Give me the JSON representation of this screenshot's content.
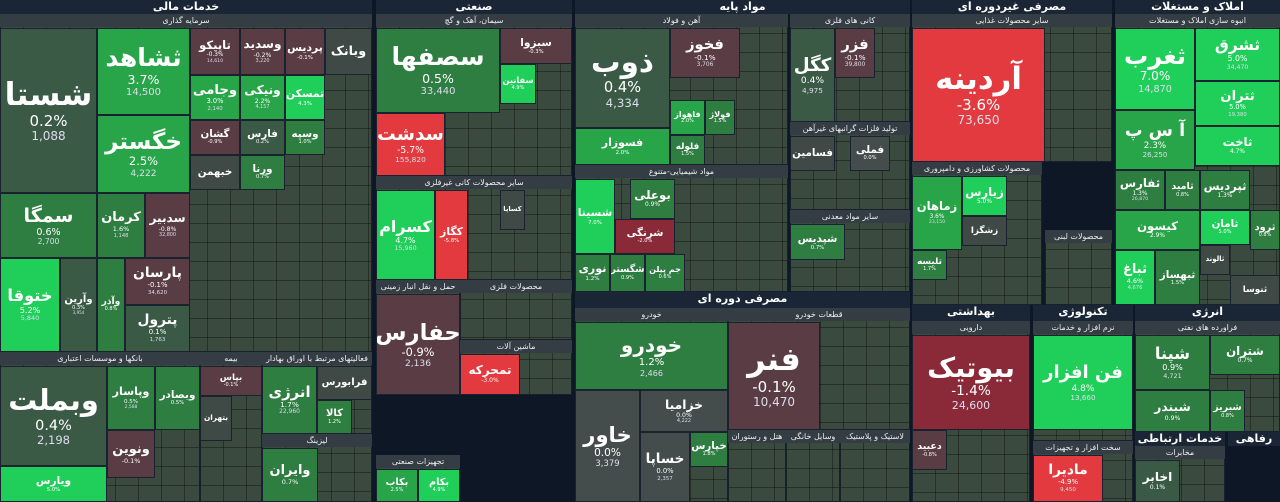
{
  "sectors": [
    {
      "title": "خدمات مالی"
    },
    {
      "title": "صنعتی"
    },
    {
      "title": "مواد پایه"
    },
    {
      "title": "مصرفی غیردوره ای"
    },
    {
      "title": "املاک و مستغلات"
    },
    {
      "title": "مصرفی دوره ای"
    },
    {
      "title": "بهداشتی"
    },
    {
      "title": "تکنولوژی"
    },
    {
      "title": "انرژی"
    },
    {
      "title": "خدمات ارتباطی"
    },
    {
      "title": "رفاهی"
    }
  ],
  "groups": [
    {
      "title": "سرمایه گذاری",
      "tiles": [
        {
          "name": "شستا",
          "change": "0.2%",
          "value": "1,088"
        },
        {
          "name": "سمگا",
          "change": "0.6%",
          "value": "2,700"
        },
        {
          "name": "ختوقا",
          "change": "5.2%",
          "value": "5,840"
        },
        {
          "name": "وآرین",
          "change": "0.3%",
          "value": "3,954"
        },
        {
          "name": "ثشاهد",
          "change": "3.7%",
          "value": "14,500"
        },
        {
          "name": "خگستر",
          "change": "2.5%",
          "value": "4,222"
        },
        {
          "name": "کرمان",
          "change": "1.6%",
          "value": "1,148"
        },
        {
          "name": "سدبیر",
          "change": "-0.8%",
          "value": "32,800"
        },
        {
          "name": "وآذر",
          "change": "0.8%"
        },
        {
          "name": "پارسان",
          "change": "-0.1%",
          "value": "34,620"
        },
        {
          "name": "پترول",
          "change": "0.1%",
          "value": "1,763"
        },
        {
          "name": "تاپیکو",
          "change": "-0.3%",
          "value": "14,610"
        },
        {
          "name": "وسدید",
          "change": "-0.2%",
          "value": "3,220"
        },
        {
          "name": "پردیس",
          "change": "-0.1%"
        },
        {
          "name": "وبانک"
        },
        {
          "name": "وجامی",
          "change": "3.0%",
          "value": "2,140"
        },
        {
          "name": "ونیکی",
          "change": "2.2%",
          "value": "4,157"
        },
        {
          "name": "تمسکن",
          "change": "4.3%"
        },
        {
          "name": "گشان",
          "change": "-0.9%"
        },
        {
          "name": "فارس",
          "change": "0.2%"
        },
        {
          "name": "وسپه",
          "change": "1.0%"
        },
        {
          "name": "خبهمن"
        },
        {
          "name": "ورنا",
          "change": "0.7%"
        }
      ]
    },
    {
      "title": "بانکها و موسسات اعتباری",
      "tiles": [
        {
          "name": "وبملت",
          "change": "0.4%",
          "value": "2,198"
        },
        {
          "name": "ویارس",
          "change": "5.0%"
        },
        {
          "name": "وپاسار",
          "change": "0.5%",
          "value": "2,588"
        },
        {
          "name": "وبصادر",
          "change": "0.5%"
        },
        {
          "name": "ونوین",
          "change": "-0.1%"
        }
      ]
    },
    {
      "title": "بیمه",
      "tiles": [
        {
          "name": "بپاس",
          "change": "-0.1%"
        },
        {
          "name": "بتهران"
        }
      ]
    },
    {
      "title": "فعالیتهای مرتبط با اوراق بهادار",
      "tiles": [
        {
          "name": "انرژی",
          "change": "1.7%",
          "value": "22,960"
        },
        {
          "name": "فرابورس"
        },
        {
          "name": "کالا",
          "change": "1.2%"
        }
      ]
    },
    {
      "title": "لیزینگ",
      "tiles": [
        {
          "name": "وایران",
          "change": "0.7%"
        }
      ]
    },
    {
      "title": "سیمان، آهک و گچ",
      "tiles": [
        {
          "name": "سصفها",
          "change": "0.5%",
          "value": "33,440"
        },
        {
          "name": "سدشت",
          "change": "-5.7%",
          "value": "155,820"
        },
        {
          "name": "سبزوا",
          "change": "-0.3%"
        },
        {
          "name": "سفانین",
          "change": "4.9%"
        }
      ]
    },
    {
      "title": "سایر محصولات کانی غیرفلزی",
      "tiles": [
        {
          "name": "کسرام",
          "change": "4.7%",
          "value": "15,960"
        },
        {
          "name": "کگاز",
          "change": "-5.8%"
        },
        {
          "name": "کساپا"
        }
      ]
    },
    {
      "title": "حمل و نقل انبار زمینی",
      "tiles": [
        {
          "name": "حفارس",
          "change": "-0.9%",
          "value": "2,136"
        }
      ]
    },
    {
      "title": "محصولات فلزی",
      "tiles": []
    },
    {
      "title": "ماشین آلات",
      "tiles": [
        {
          "name": "تمحرکه",
          "change": "-3.0%"
        }
      ]
    },
    {
      "title": "تجهیزات صنعتی",
      "tiles": [
        {
          "name": "بکاب",
          "change": "2.5%"
        },
        {
          "name": "بکام",
          "change": "4.9%"
        }
      ]
    },
    {
      "title": "آهن و فولاد",
      "tiles": [
        {
          "name": "ذوب",
          "change": "0.4%",
          "value": "4,334"
        },
        {
          "name": "فسوزار",
          "change": "2.0%"
        },
        {
          "name": "فخوز",
          "change": "-0.1%",
          "value": "3,706"
        },
        {
          "name": "فاهواز",
          "change": "2.0%"
        },
        {
          "name": "فولاژ",
          "change": "1.5%"
        },
        {
          "name": "فلوله",
          "change": "1.5%"
        }
      ]
    },
    {
      "title": "کانی های فلزی",
      "tiles": [
        {
          "name": "کگل",
          "change": "0.4%",
          "value": "4,975"
        },
        {
          "name": "فزر",
          "change": "-0.1%",
          "value": "39,800"
        }
      ]
    },
    {
      "title": "تولید فلزات گرانبهای غیرآهن",
      "tiles": [
        {
          "name": "فملی",
          "change": "0.0%"
        },
        {
          "name": "فسامین"
        }
      ]
    },
    {
      "title": "مواد شیمیایی-متنوع",
      "tiles": [
        {
          "name": "شسینا",
          "change": "7.0%"
        },
        {
          "name": "بوعلی",
          "change": "0.9%"
        },
        {
          "name": "شرنگی",
          "change": "-2.0%"
        },
        {
          "name": "نوری",
          "change": "1.2%"
        },
        {
          "name": "شگستر",
          "change": "0.9%"
        },
        {
          "name": "جم پیلن",
          "change": "0.6%"
        }
      ]
    },
    {
      "title": "سایر مواد معدنی",
      "tiles": [
        {
          "name": "شپدیس",
          "change": "0.7%"
        }
      ]
    },
    {
      "title": "سایر محصولات غذایی",
      "tiles": [
        {
          "name": "آردینه",
          "change": "-3.6%",
          "value": "73,650"
        }
      ]
    },
    {
      "title": "محصولات کشاورزی و دامپروری",
      "tiles": [
        {
          "name": "زماهان",
          "change": "3.6%",
          "value": "23,150"
        },
        {
          "name": "زیارس",
          "change": "5.0%"
        },
        {
          "name": "زشگزا"
        },
        {
          "name": "تلیسه",
          "change": "1.7%"
        }
      ]
    },
    {
      "title": "محصولات لبنی",
      "tiles": []
    },
    {
      "title": "انبوه سازی املاک و مستغلات",
      "tiles": [
        {
          "name": "ثغرب",
          "change": "7.0%",
          "value": "14,870"
        },
        {
          "name": "ثشرق",
          "change": "5.0%",
          "value": "34,470"
        },
        {
          "name": "ثتران",
          "change": "5.0%",
          "value": "19,380"
        },
        {
          "name": "ثاخت",
          "change": "4.7%"
        },
        {
          "name": "آ س پ",
          "change": "2.3%",
          "value": "26,250"
        },
        {
          "name": "ثفارس",
          "change": "1.3%",
          "value": "26,870"
        },
        {
          "name": "ثامید",
          "change": "0.8%"
        },
        {
          "name": "ثپردیس",
          "change": "1.3%"
        },
        {
          "name": "کیسون",
          "change": "2.9%"
        },
        {
          "name": "ثرود",
          "change": "0.8%"
        },
        {
          "name": "ثامان",
          "change": "5.0%"
        },
        {
          "name": "ثباغ",
          "change": "4.6%",
          "value": "4,676"
        },
        {
          "name": "ثبهساز",
          "change": "1.5%"
        },
        {
          "name": "ثالوند"
        },
        {
          "name": "ثنوسا"
        }
      ]
    },
    {
      "title": "خودرو",
      "tiles": [
        {
          "name": "خودرو",
          "change": "1.2%",
          "value": "2,466"
        },
        {
          "name": "خاور",
          "change": "0.0%",
          "value": "3,379"
        },
        {
          "name": "خزامیا",
          "change": "0.0%",
          "value": "4,222"
        },
        {
          "name": "خساپا",
          "change": "0.0%",
          "value": "2,357"
        },
        {
          "name": "خپارس",
          "change": "1.8%"
        }
      ]
    },
    {
      "title": "قطعات خودرو",
      "tiles": [
        {
          "name": "فنر",
          "change": "-0.1%",
          "value": "10,470"
        }
      ]
    },
    {
      "title": "هتل و رستوران",
      "tiles": []
    },
    {
      "title": "وسایل خانگی",
      "tiles": []
    },
    {
      "title": "لاستیک و پلاستیک",
      "tiles": []
    },
    {
      "title": "دارویی",
      "tiles": [
        {
          "name": "بیوتیک",
          "change": "-1.4%",
          "value": "24,600"
        },
        {
          "name": "دعبید",
          "change": "-0.8%"
        }
      ]
    },
    {
      "title": "نرم افزار و خدمات",
      "tiles": [
        {
          "name": "فن افزار",
          "change": "4.8%",
          "value": "13,660"
        }
      ]
    },
    {
      "title": "سخت افزار و تجهیزات",
      "tiles": [
        {
          "name": "مادیرا",
          "change": "-4.9%",
          "value": "9,450"
        }
      ]
    },
    {
      "title": "فراورده های نفتی",
      "tiles": [
        {
          "name": "شپنا",
          "change": "0.9%",
          "value": "4,721"
        },
        {
          "name": "شتران",
          "change": "0.7%"
        },
        {
          "name": "شبندر",
          "change": "0.9%"
        },
        {
          "name": "شبریز",
          "change": "0.8%"
        }
      ]
    },
    {
      "title": "مخابرات",
      "tiles": [
        {
          "name": "اخابر",
          "change": "0.1%"
        }
      ]
    }
  ]
}
